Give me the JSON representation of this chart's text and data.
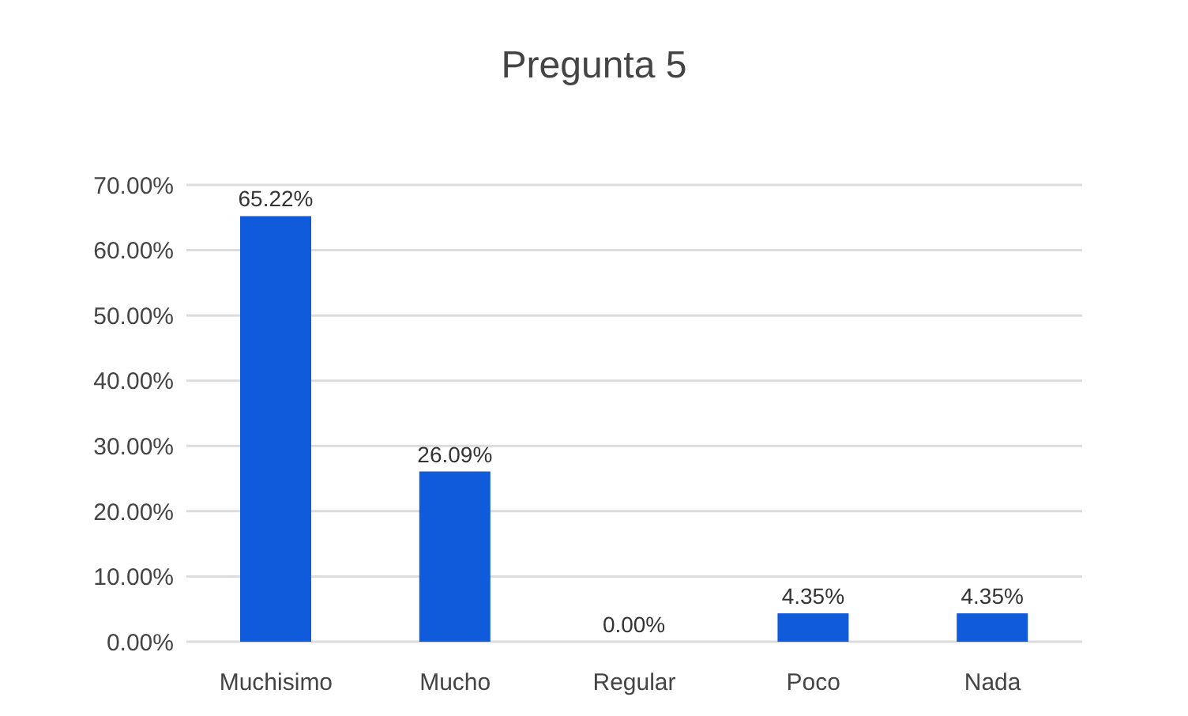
{
  "chart_data": {
    "type": "bar",
    "title": "Pregunta 5",
    "categories": [
      "Muchisimo",
      "Mucho",
      "Regular",
      "Poco",
      "Nada"
    ],
    "values": [
      65.22,
      26.09,
      0,
      4.35,
      4.35
    ],
    "color": "#0f5bdb",
    "value_labels": [
      "65.22%",
      "26.09%",
      "0.00%",
      "4.35%",
      "4.35%"
    ],
    "ylim": [
      0,
      70
    ],
    "yticks": [
      {
        "value": 0,
        "label": "0.00%"
      },
      {
        "value": 10,
        "label": "10.00%"
      },
      {
        "value": 20,
        "label": "20.00%"
      },
      {
        "value": 30,
        "label": "30.00%"
      },
      {
        "value": 40,
        "label": "40.00%"
      },
      {
        "value": 50,
        "label": "50.00%"
      },
      {
        "value": 60,
        "label": "60.00%"
      },
      {
        "value": 70,
        "label": "70.00%"
      }
    ],
    "grid": "y"
  }
}
